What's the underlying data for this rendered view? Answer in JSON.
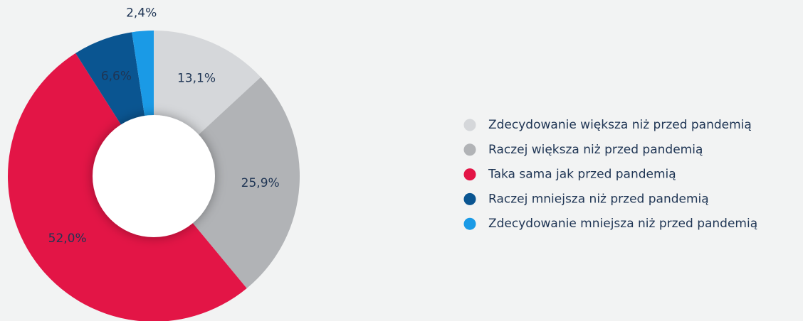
{
  "chart_data": {
    "type": "donut",
    "categories": [
      "Zdecydowanie większa niż przed pandemią",
      "Raczej większa niż przed pandemią",
      "Taka sama jak przed pandemią",
      "Raczej mniejsza niż przed pandemią",
      "Zdecydowanie mniejsza niż przed pandemią"
    ],
    "values": [
      13.1,
      25.9,
      52.0,
      6.6,
      2.4
    ],
    "value_labels": [
      "13,1%",
      "25,9%",
      "52,0%",
      "6,6%",
      "2,4%"
    ],
    "colors": [
      "#d5d7da",
      "#b1b3b6",
      "#e31546",
      "#0a5591",
      "#1a9ae6"
    ],
    "legend": "right"
  }
}
